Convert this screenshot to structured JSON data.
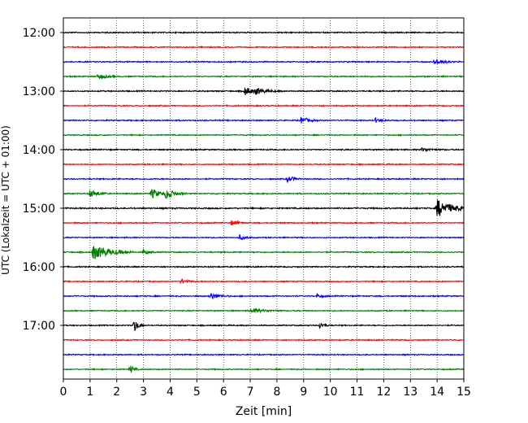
{
  "chart_data": {
    "type": "line",
    "title": "",
    "xlabel": "Zeit  [min]",
    "ylabel": "UTC (Lokalzeit = UTC + 01:00)",
    "xlim": [
      0,
      15
    ],
    "x_ticks": [
      "0",
      "1",
      "2",
      "3",
      "4",
      "5",
      "6",
      "7",
      "8",
      "9",
      "10",
      "11",
      "12",
      "13",
      "14",
      "15"
    ],
    "y_ticks": [
      "12:00",
      "13:00",
      "14:00",
      "15:00",
      "16:00",
      "17:00"
    ],
    "grid": "vertical dotted at each minute",
    "line_colors": [
      "#000000",
      "#ff0000",
      "#0000ff",
      "#008000"
    ],
    "series": [
      {
        "start": "12:00",
        "color": "#000000",
        "noise": 0.6,
        "events": []
      },
      {
        "start": "12:15",
        "color": "#ff0000",
        "noise": 0.55,
        "events": []
      },
      {
        "start": "12:30",
        "color": "#0000ff",
        "noise": 0.6,
        "events": [
          {
            "t": 13.9,
            "amp": 4,
            "dur": 0.3
          }
        ]
      },
      {
        "start": "12:45",
        "color": "#008000",
        "noise": 0.6,
        "events": [
          {
            "t": 1.3,
            "amp": 3,
            "dur": 0.3
          }
        ]
      },
      {
        "start": "13:00",
        "color": "#000000",
        "noise": 0.6,
        "events": [
          {
            "t": 6.8,
            "amp": 5,
            "dur": 0.3
          },
          {
            "t": 7.2,
            "amp": 3,
            "dur": 0.4
          }
        ]
      },
      {
        "start": "13:15",
        "color": "#ff0000",
        "noise": 0.55,
        "events": []
      },
      {
        "start": "13:30",
        "color": "#0000ff",
        "noise": 0.6,
        "events": [
          {
            "t": 8.9,
            "amp": 4,
            "dur": 0.25
          },
          {
            "t": 11.7,
            "amp": 2.5,
            "dur": 0.2
          }
        ]
      },
      {
        "start": "13:45",
        "color": "#008000",
        "noise": 0.55,
        "events": []
      },
      {
        "start": "14:00",
        "color": "#000000",
        "noise": 0.6,
        "events": [
          {
            "t": 13.4,
            "amp": 2,
            "dur": 0.4
          }
        ]
      },
      {
        "start": "14:15",
        "color": "#ff0000",
        "noise": 0.55,
        "events": []
      },
      {
        "start": "14:30",
        "color": "#0000ff",
        "noise": 0.6,
        "events": [
          {
            "t": 8.4,
            "amp": 4,
            "dur": 0.2
          }
        ]
      },
      {
        "start": "14:45",
        "color": "#008000",
        "noise": 0.6,
        "events": [
          {
            "t": 1.0,
            "amp": 5,
            "dur": 0.25
          },
          {
            "t": 3.3,
            "amp": 6,
            "dur": 0.3
          },
          {
            "t": 3.85,
            "amp": 6,
            "dur": 0.3
          }
        ]
      },
      {
        "start": "15:00",
        "color": "#000000",
        "noise": 0.7,
        "events": [
          {
            "t": 14.0,
            "amp": 11,
            "dur": 0.5
          }
        ]
      },
      {
        "start": "15:15",
        "color": "#ff0000",
        "noise": 0.55,
        "events": [
          {
            "t": 6.3,
            "amp": 3,
            "dur": 0.2
          }
        ]
      },
      {
        "start": "15:30",
        "color": "#0000ff",
        "noise": 0.55,
        "events": [
          {
            "t": 6.6,
            "amp": 3,
            "dur": 0.2
          }
        ]
      },
      {
        "start": "15:45",
        "color": "#008000",
        "noise": 0.6,
        "events": [
          {
            "t": 1.1,
            "amp": 9,
            "dur": 0.6
          },
          {
            "t": 3.0,
            "amp": 3,
            "dur": 0.2
          }
        ]
      },
      {
        "start": "16:00",
        "color": "#000000",
        "noise": 0.6,
        "events": []
      },
      {
        "start": "16:15",
        "color": "#ff0000",
        "noise": 0.55,
        "events": [
          {
            "t": 4.4,
            "amp": 3,
            "dur": 0.2
          }
        ]
      },
      {
        "start": "16:30",
        "color": "#0000ff",
        "noise": 0.6,
        "events": [
          {
            "t": 5.5,
            "amp": 4,
            "dur": 0.3
          },
          {
            "t": 9.5,
            "amp": 2,
            "dur": 0.2
          }
        ]
      },
      {
        "start": "16:45",
        "color": "#008000",
        "noise": 0.55,
        "events": [
          {
            "t": 7.0,
            "amp": 3,
            "dur": 0.5
          }
        ]
      },
      {
        "start": "17:00",
        "color": "#000000",
        "noise": 0.55,
        "events": [
          {
            "t": 2.65,
            "amp": 8,
            "dur": 0.15
          },
          {
            "t": 9.6,
            "amp": 4,
            "dur": 0.15
          }
        ]
      },
      {
        "start": "17:15",
        "color": "#ff0000",
        "noise": 0.55,
        "events": []
      },
      {
        "start": "17:30",
        "color": "#0000ff",
        "noise": 0.55,
        "events": []
      },
      {
        "start": "17:45",
        "color": "#008000",
        "noise": 0.55,
        "events": [
          {
            "t": 2.5,
            "amp": 6,
            "dur": 0.12
          }
        ]
      }
    ]
  }
}
